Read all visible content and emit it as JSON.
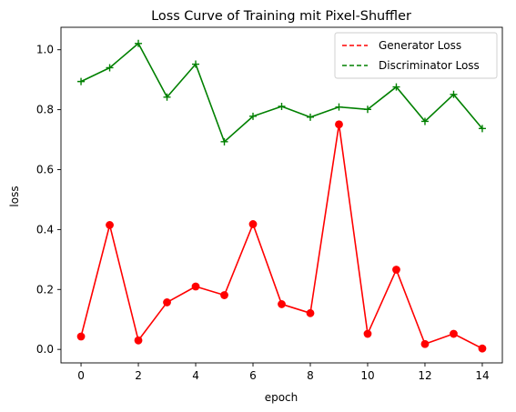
{
  "chart_data": {
    "type": "line",
    "title": "Loss Curve of Training mit Pixel-Shuffler",
    "xlabel": "epoch",
    "ylabel": "loss",
    "x": [
      0,
      1,
      2,
      3,
      4,
      5,
      6,
      7,
      8,
      9,
      10,
      11,
      12,
      13,
      14
    ],
    "xlim": [
      -0.7,
      14.7
    ],
    "ylim": [
      -0.045,
      1.075
    ],
    "xticks": [
      0,
      2,
      4,
      6,
      8,
      10,
      12,
      14
    ],
    "xtick_labels": [
      "0",
      "2",
      "4",
      "6",
      "8",
      "10",
      "12",
      "14"
    ],
    "yticks": [
      0.0,
      0.2,
      0.4,
      0.6,
      0.8,
      1.0
    ],
    "ytick_labels": [
      "0.0",
      "0.2",
      "0.4",
      "0.6",
      "0.8",
      "1.0"
    ],
    "grid": false,
    "legend_position": "top-right",
    "series": [
      {
        "name": "Generator Loss",
        "color": "#ff0000",
        "marker": "circle",
        "values": [
          0.043,
          0.415,
          0.03,
          0.157,
          0.21,
          0.181,
          0.418,
          0.151,
          0.121,
          0.751,
          0.052,
          0.266,
          0.018,
          0.052,
          0.003
        ]
      },
      {
        "name": "Discriminator Loss",
        "color": "#008000",
        "marker": "plus",
        "values": [
          0.894,
          0.94,
          1.021,
          0.842,
          0.952,
          0.693,
          0.778,
          0.811,
          0.775,
          0.809,
          0.801,
          0.876,
          0.761,
          0.851,
          0.737
        ]
      }
    ]
  }
}
